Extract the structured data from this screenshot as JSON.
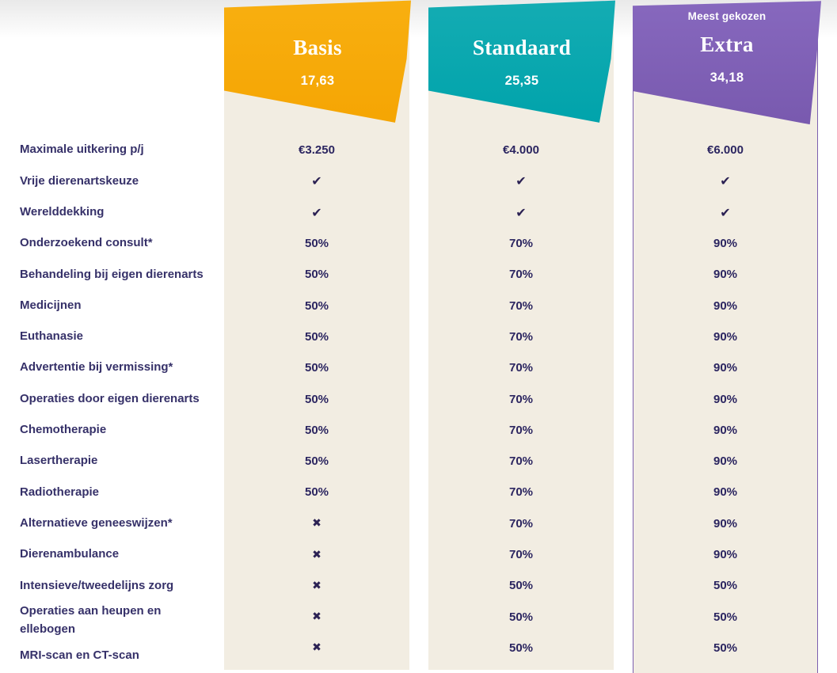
{
  "colors": {
    "body_background": "#ffffff",
    "top_gradient": "#e9e9e9",
    "column_background": "#f2ede2",
    "label_text": "#363169",
    "value_text": "#2b2560",
    "popular_border": "#7c5faf"
  },
  "icons": {
    "check": "✔",
    "cross": "✖"
  },
  "table": {
    "features": [
      "Maximale uitkering p/j",
      "Vrije dierenartskeuze",
      "Werelddekking",
      "Onderzoekend consult*",
      "Behandeling bij eigen dierenarts",
      "Medicijnen",
      "Euthanasie",
      "Advertentie bij vermissing*",
      "Operaties door eigen dierenarts",
      "Chemotherapie",
      "Lasertherapie",
      "Radiotherapie",
      "Alternatieve geneeswijzen*",
      "Dierenambulance",
      "Intensieve/tweedelijns zorg",
      "Operaties aan heupen en\nellebogen",
      "MRI-scan en CT-scan"
    ],
    "plans": [
      {
        "id": "basis",
        "name": "Basis",
        "price": "17,63",
        "badge": "",
        "color_top": "#f8af10",
        "color": "#f5a503",
        "values": [
          "€3.250",
          "check",
          "check",
          "50%",
          "50%",
          "50%",
          "50%",
          "50%",
          "50%",
          "50%",
          "50%",
          "50%",
          "cross",
          "cross",
          "cross",
          "cross",
          "cross"
        ]
      },
      {
        "id": "standaard",
        "name": "Standaard",
        "price": "25,35",
        "badge": "",
        "color_top": "#14acb3",
        "color": "#00a3ab",
        "values": [
          "€4.000",
          "check",
          "check",
          "70%",
          "70%",
          "70%",
          "70%",
          "70%",
          "70%",
          "70%",
          "70%",
          "70%",
          "70%",
          "70%",
          "50%",
          "50%",
          "50%"
        ]
      },
      {
        "id": "extra",
        "name": "Extra",
        "price": "34,18",
        "badge": "Meest gekozen",
        "color_top": "#8768be",
        "color": "#7859ae",
        "values": [
          "€6.000",
          "check",
          "check",
          "90%",
          "90%",
          "90%",
          "90%",
          "90%",
          "90%",
          "90%",
          "90%",
          "90%",
          "90%",
          "90%",
          "50%",
          "50%",
          "50%"
        ]
      }
    ]
  }
}
